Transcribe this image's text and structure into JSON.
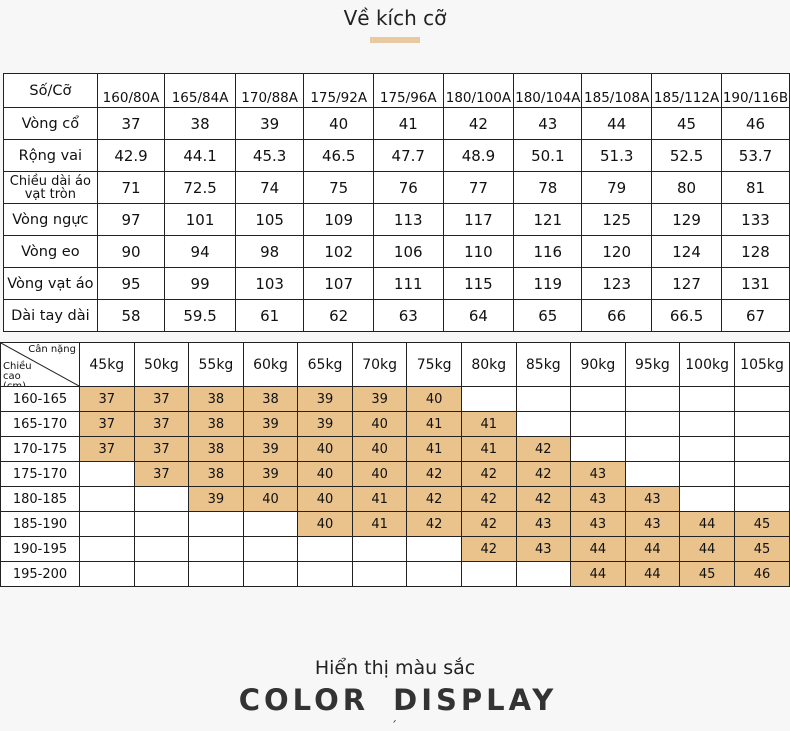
{
  "title": "Về kích cỡ",
  "size_table": {
    "header_label": "Số/Cỡ",
    "sizes": [
      "160/80A",
      "165/84A",
      "170/88A",
      "175/92A",
      "175/96A",
      "180/100A",
      "180/104A",
      "185/108A",
      "185/112A",
      "190/116B"
    ],
    "rows": [
      {
        "label": "Vòng cổ",
        "values": [
          "37",
          "38",
          "39",
          "40",
          "41",
          "42",
          "43",
          "44",
          "45",
          "46"
        ]
      },
      {
        "label": "Rộng vai",
        "values": [
          "42.9",
          "44.1",
          "45.3",
          "46.5",
          "47.7",
          "48.9",
          "50.1",
          "51.3",
          "52.5",
          "53.7"
        ]
      },
      {
        "label": "Chiều dài áo vạt tròn",
        "values": [
          "71",
          "72.5",
          "74",
          "75",
          "76",
          "77",
          "78",
          "79",
          "80",
          "81"
        ]
      },
      {
        "label": "Vòng ngực",
        "values": [
          "97",
          "101",
          "105",
          "109",
          "113",
          "117",
          "121",
          "125",
          "129",
          "133"
        ]
      },
      {
        "label": "Vòng eo",
        "values": [
          "90",
          "94",
          "98",
          "102",
          "106",
          "110",
          "116",
          "120",
          "124",
          "128"
        ]
      },
      {
        "label": "Vòng vạt áo",
        "values": [
          "95",
          "99",
          "103",
          "107",
          "111",
          "115",
          "119",
          "123",
          "127",
          "131"
        ]
      },
      {
        "label": "Dài tay dài",
        "values": [
          "58",
          "59.5",
          "61",
          "62",
          "63",
          "64",
          "65",
          "66",
          "66.5",
          "67"
        ]
      }
    ]
  },
  "fit_table": {
    "weight_label": "Cân nặng",
    "height_label": "Chiều cao (cm)",
    "weights": [
      "45kg",
      "50kg",
      "55kg",
      "60kg",
      "65kg",
      "70kg",
      "75kg",
      "80kg",
      "85kg",
      "90kg",
      "95kg",
      "100kg",
      "105kg"
    ],
    "rows": [
      {
        "label": "160-165",
        "cells": [
          "37",
          "37",
          "38",
          "38",
          "39",
          "39",
          "40",
          "",
          "",
          "",
          "",
          "",
          ""
        ]
      },
      {
        "label": "165-170",
        "cells": [
          "37",
          "37",
          "38",
          "39",
          "39",
          "40",
          "41",
          "41",
          "",
          "",
          "",
          "",
          ""
        ]
      },
      {
        "label": "170-175",
        "cells": [
          "37",
          "37",
          "38",
          "39",
          "40",
          "40",
          "41",
          "41",
          "42",
          "",
          "",
          "",
          ""
        ]
      },
      {
        "label": "175-170",
        "cells": [
          "",
          "37",
          "38",
          "39",
          "40",
          "40",
          "42",
          "42",
          "42",
          "43",
          "",
          "",
          ""
        ]
      },
      {
        "label": "180-185",
        "cells": [
          "",
          "",
          "39",
          "40",
          "40",
          "41",
          "42",
          "42",
          "42",
          "43",
          "43",
          "",
          ""
        ]
      },
      {
        "label": "185-190",
        "cells": [
          "",
          "",
          "",
          "",
          "40",
          "41",
          "42",
          "42",
          "43",
          "43",
          "43",
          "44",
          "45"
        ]
      },
      {
        "label": "190-195",
        "cells": [
          "",
          "",
          "",
          "",
          "",
          "",
          "",
          "42",
          "43",
          "44",
          "44",
          "44",
          "45"
        ]
      },
      {
        "label": "195-200",
        "cells": [
          "",
          "",
          "",
          "",
          "",
          "",
          "",
          "",
          "",
          "44",
          "44",
          "45",
          "46"
        ]
      }
    ],
    "fill_color": "#e9c28c"
  },
  "color_section": {
    "title_vi": "Hiển thị màu sắc",
    "title_en": "COLOR DISPLAY"
  }
}
